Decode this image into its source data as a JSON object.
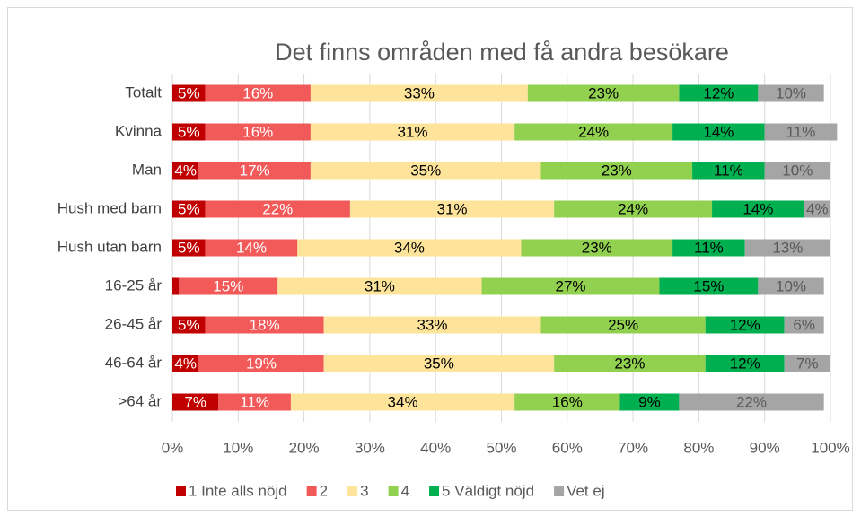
{
  "chart_data": {
    "type": "stacked-bar-horizontal",
    "title": "Det finns områden med få andra besökare",
    "categories": [
      "Totalt",
      "Kvinna",
      "Man",
      "Hush med barn",
      "Hush utan barn",
      "16-25 år",
      "26-45 år",
      "46-64 år",
      ">64 år"
    ],
    "series": [
      {
        "name": "1 Inte alls nöjd",
        "color": "#c00000",
        "label_color": "#ffffff",
        "values": [
          5,
          5,
          4,
          5,
          5,
          1,
          5,
          4,
          7
        ],
        "value_labels": [
          "5%",
          "5%",
          "4%",
          "5%",
          "5%",
          null,
          "5%",
          "4%",
          "7%"
        ]
      },
      {
        "name": "2",
        "color": "#f25a5a",
        "label_color": "#ffffff",
        "values": [
          16,
          16,
          17,
          22,
          14,
          15,
          18,
          19,
          11
        ],
        "value_labels": [
          "16%",
          "16%",
          "17%",
          "22%",
          "14%",
          "15%",
          "18%",
          "19%",
          "11%"
        ]
      },
      {
        "name": "3",
        "color": "#fde49a",
        "label_color": "#000000",
        "values": [
          33,
          31,
          35,
          31,
          34,
          31,
          33,
          35,
          34
        ],
        "value_labels": [
          "33%",
          "31%",
          "35%",
          "31%",
          "34%",
          "31%",
          "33%",
          "35%",
          "34%"
        ]
      },
      {
        "name": "4",
        "color": "#92d050",
        "label_color": "#000000",
        "values": [
          23,
          24,
          23,
          24,
          23,
          27,
          25,
          23,
          16
        ],
        "value_labels": [
          "23%",
          "24%",
          "23%",
          "24%",
          "23%",
          "27%",
          "25%",
          "23%",
          "16%"
        ]
      },
      {
        "name": "5 Väldigt nöjd",
        "color": "#00b050",
        "label_color": "#000000",
        "values": [
          12,
          14,
          11,
          14,
          11,
          15,
          12,
          12,
          9
        ],
        "value_labels": [
          "12%",
          "14%",
          "11%",
          "14%",
          "11%",
          "15%",
          "12%",
          "12%",
          "9%"
        ]
      },
      {
        "name": "Vet ej",
        "color": "#a5a5a5",
        "label_color": "#595959",
        "values": [
          10,
          11,
          10,
          4,
          13,
          10,
          6,
          7,
          22
        ],
        "value_labels": [
          "10%",
          "11%",
          "10%",
          "4%",
          "13%",
          "10%",
          "6%",
          "7%",
          "22%"
        ]
      }
    ],
    "xlim": [
      0,
      100
    ],
    "xticks": [
      {
        "value": 0,
        "label": "0%"
      },
      {
        "value": 10,
        "label": "10%"
      },
      {
        "value": 20,
        "label": "20%"
      },
      {
        "value": 30,
        "label": "30%"
      },
      {
        "value": 40,
        "label": "40%"
      },
      {
        "value": 50,
        "label": "50%"
      },
      {
        "value": 60,
        "label": "60%"
      },
      {
        "value": 70,
        "label": "70%"
      },
      {
        "value": 80,
        "label": "80%"
      },
      {
        "value": 90,
        "label": "90%"
      },
      {
        "value": 100,
        "label": "100%"
      }
    ],
    "grid": true,
    "legend": "bottom"
  }
}
